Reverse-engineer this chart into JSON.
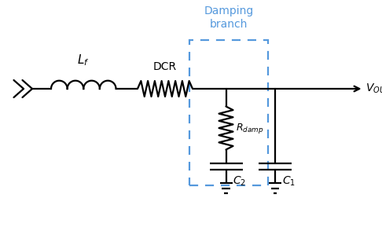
{
  "bg_color": "#ffffff",
  "line_color": "#000000",
  "damp_box_color": "#5599dd",
  "damp_text_color": "#5599dd",
  "figsize": [
    4.86,
    3.03
  ],
  "dpi": 100,
  "xlim": [
    0,
    9.72
  ],
  "ylim": [
    0,
    6.06
  ]
}
